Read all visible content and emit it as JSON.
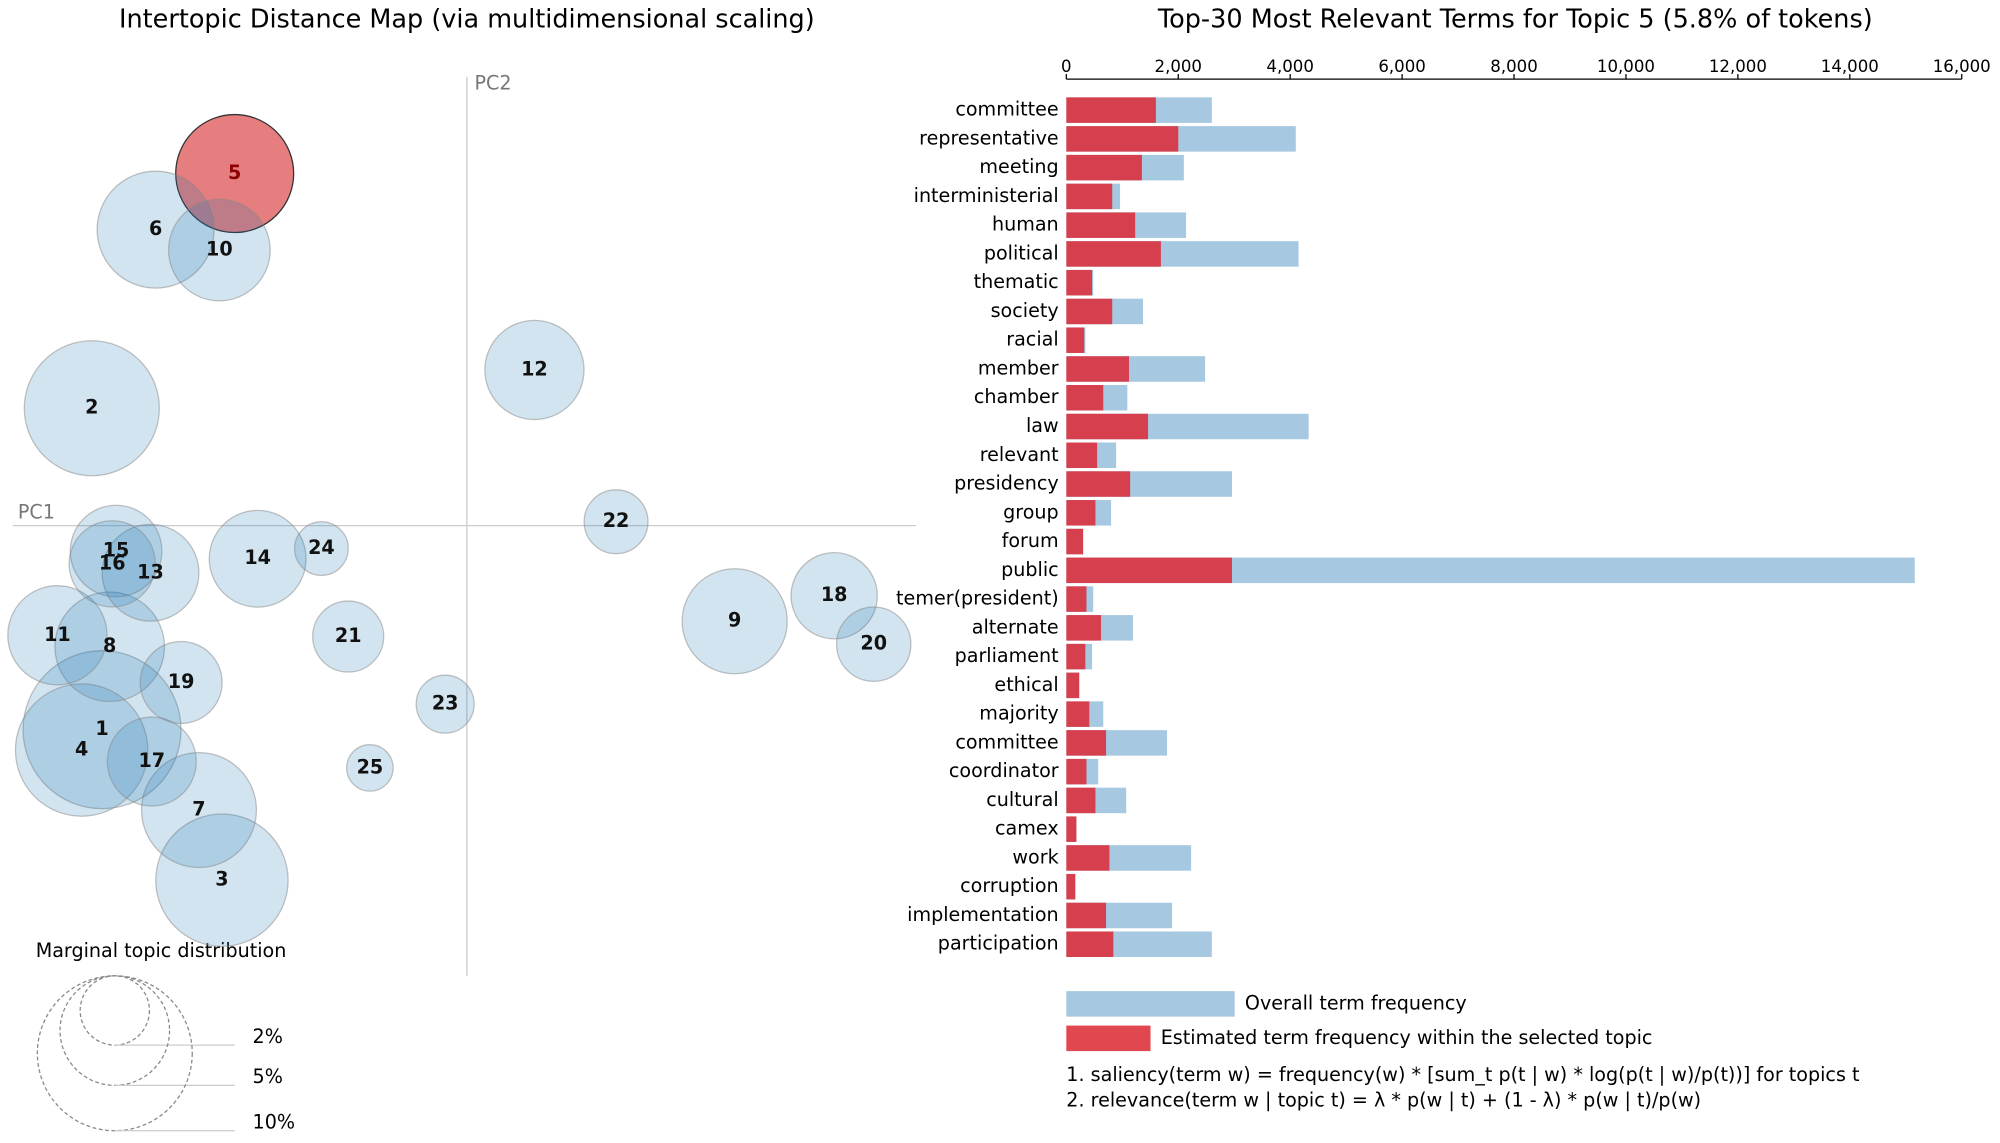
{
  "chart_data": [
    {
      "type": "scatter",
      "title": "Intertopic Distance Map (via multidimensional scaling)",
      "xlabel": "PC1",
      "ylabel": "PC2",
      "xlim": [
        -0.36,
        0.36
      ],
      "ylim": [
        -0.36,
        0.36
      ],
      "points": [
        {
          "label": "1",
          "x": -0.286,
          "y": -0.16,
          "size": 10.4,
          "color": "#1f77b4"
        },
        {
          "label": "2",
          "x": -0.294,
          "y": 0.092,
          "size": 7.6,
          "color": "#1f77b4"
        },
        {
          "label": "3",
          "x": -0.192,
          "y": -0.278,
          "size": 7.3,
          "color": "#1f77b4"
        },
        {
          "label": "4",
          "x": -0.302,
          "y": -0.176,
          "size": 7.3,
          "color": "#1f77b4"
        },
        {
          "label": "5",
          "x": -0.182,
          "y": 0.276,
          "size": 5.8,
          "color": "#d62728"
        },
        {
          "label": "6",
          "x": -0.244,
          "y": 0.232,
          "size": 5.7,
          "color": "#1f77b4"
        },
        {
          "label": "7",
          "x": -0.21,
          "y": -0.223,
          "size": 5.5,
          "color": "#1f77b4"
        },
        {
          "label": "8",
          "x": -0.28,
          "y": -0.095,
          "size": 5.0,
          "color": "#1f77b4"
        },
        {
          "label": "9",
          "x": 0.21,
          "y": -0.075,
          "size": 4.6,
          "color": "#1f77b4"
        },
        {
          "label": "10",
          "x": -0.194,
          "y": 0.216,
          "size": 4.3,
          "color": "#1f77b4"
        },
        {
          "label": "11",
          "x": -0.321,
          "y": -0.086,
          "size": 4.1,
          "color": "#1f77b4"
        },
        {
          "label": "12",
          "x": 0.053,
          "y": 0.122,
          "size": 4.1,
          "color": "#1f77b4"
        },
        {
          "label": "13",
          "x": -0.248,
          "y": -0.037,
          "size": 3.9,
          "color": "#1f77b4"
        },
        {
          "label": "14",
          "x": -0.164,
          "y": -0.026,
          "size": 3.9,
          "color": "#1f77b4"
        },
        {
          "label": "15",
          "x": -0.275,
          "y": -0.02,
          "size": 3.5,
          "color": "#1f77b4"
        },
        {
          "label": "16",
          "x": -0.278,
          "y": -0.03,
          "size": 3.1,
          "color": "#1f77b4"
        },
        {
          "label": "17",
          "x": -0.247,
          "y": -0.185,
          "size": 3.3,
          "color": "#1f77b4"
        },
        {
          "label": "18",
          "x": 0.288,
          "y": -0.055,
          "size": 3.1,
          "color": "#1f77b4"
        },
        {
          "label": "19",
          "x": -0.224,
          "y": -0.123,
          "size": 2.8,
          "color": "#1f77b4"
        },
        {
          "label": "20",
          "x": 0.319,
          "y": -0.093,
          "size": 2.3,
          "color": "#1f77b4"
        },
        {
          "label": "21",
          "x": -0.093,
          "y": -0.087,
          "size": 2.1,
          "color": "#1f77b4"
        },
        {
          "label": "22",
          "x": 0.117,
          "y": 0.003,
          "size": 1.7,
          "color": "#1f77b4"
        },
        {
          "label": "23",
          "x": -0.017,
          "y": -0.14,
          "size": 1.4,
          "color": "#1f77b4"
        },
        {
          "label": "24",
          "x": -0.114,
          "y": -0.018,
          "size": 1.2,
          "color": "#1f77b4"
        },
        {
          "label": "25",
          "x": -0.076,
          "y": -0.19,
          "size": 0.9,
          "color": "#1f77b4"
        }
      ],
      "size_legend": {
        "title": "Marginal topic distribution",
        "ticks": [
          {
            "value": 2,
            "label": "2%"
          },
          {
            "value": 5,
            "label": "5%"
          },
          {
            "value": 10,
            "label": "10%"
          }
        ]
      }
    },
    {
      "type": "bar",
      "title": "Top-30 Most Relevant Terms for Topic 5 (5.8% of tokens)",
      "categories": [
        "committee",
        "representative",
        "meeting",
        "interministerial",
        "human",
        "political",
        "thematic",
        "society",
        "racial",
        "member",
        "chamber",
        "law",
        "relevant",
        "presidency",
        "group",
        "forum",
        "public",
        "temer(president)",
        "alternate",
        "parliament",
        "ethical",
        "majority",
        "committee",
        "coordinator",
        "cultural",
        "camex",
        "work",
        "corruption",
        "implementation",
        "participation"
      ],
      "series": [
        {
          "name": "Overall term frequency",
          "color": "#a6c8e0",
          "values": [
            2600,
            4100,
            2100,
            960,
            2140,
            4150,
            480,
            1370,
            340,
            2480,
            1090,
            4330,
            890,
            2960,
            800,
            300,
            15160,
            480,
            1190,
            460,
            230,
            660,
            1800,
            570,
            1070,
            180,
            2230,
            160,
            1890,
            2600
          ]
        },
        {
          "name": "Estimated term frequency within the selected topic",
          "color": "#d6404e",
          "values": [
            1600,
            2000,
            1350,
            820,
            1230,
            1690,
            460,
            820,
            320,
            1120,
            660,
            1460,
            550,
            1140,
            520,
            300,
            2960,
            360,
            620,
            340,
            230,
            410,
            710,
            360,
            520,
            180,
            770,
            160,
            710,
            840
          ]
        }
      ],
      "xlim": [
        0,
        16000
      ],
      "xticks": [
        0,
        {
          "value": 2000,
          "label": "2,000"
        },
        {
          "value": 4000,
          "label": "4,000"
        },
        {
          "value": 6000,
          "label": "6,000"
        },
        {
          "value": 8000,
          "label": "8,000"
        },
        {
          "value": 10000,
          "label": "10,000"
        },
        {
          "value": 12000,
          "label": "12,000"
        },
        {
          "value": 14000,
          "label": "14,000"
        },
        {
          "value": 16000,
          "label": "16,000"
        }
      ],
      "notes": [
        "1. saliency(term w) = frequency(w) * [sum_t p(t | w) * log(p(t | w)/p(t))] for topics t",
        "2. relevance(term w | topic t) = λ * p(w | t) + (1 - λ) * p(w | t)/p(w)"
      ]
    }
  ]
}
